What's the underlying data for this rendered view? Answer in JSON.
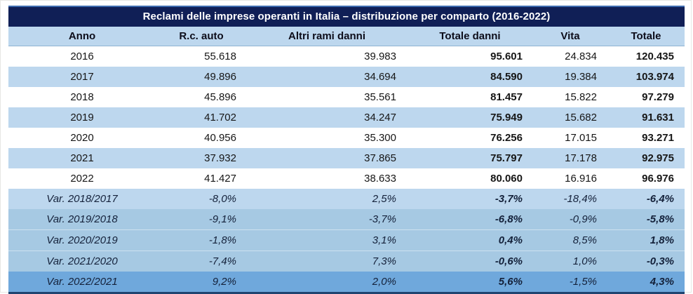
{
  "title": "Reclami delle imprese operanti in Italia – distribuzione per comparto (2016-2022)",
  "columns": [
    "Anno",
    "R.c. auto",
    "Altri rami danni",
    "Totale danni",
    "Vita",
    "Totale"
  ],
  "rows": [
    {
      "label": "2016",
      "values": [
        "55.618",
        "39.983",
        "95.601",
        "24.834",
        "120.435"
      ]
    },
    {
      "label": "2017",
      "values": [
        "49.896",
        "34.694",
        "84.590",
        "19.384",
        "103.974"
      ]
    },
    {
      "label": "2018",
      "values": [
        "45.896",
        "35.561",
        "81.457",
        "15.822",
        "97.279"
      ]
    },
    {
      "label": "2019",
      "values": [
        "41.702",
        "34.247",
        "75.949",
        "15.682",
        "91.631"
      ]
    },
    {
      "label": "2020",
      "values": [
        "40.956",
        "35.300",
        "76.256",
        "17.015",
        "93.271"
      ]
    },
    {
      "label": "2021",
      "values": [
        "37.932",
        "37.865",
        "75.797",
        "17.178",
        "92.975"
      ]
    },
    {
      "label": "2022",
      "values": [
        "41.427",
        "38.633",
        "80.060",
        "16.916",
        "96.976"
      ]
    }
  ],
  "var_rows": [
    {
      "label": "Var. 2018/2017",
      "values": [
        "-8,0%",
        "2,5%",
        "-3,7%",
        "-18,4%",
        "-6,4%"
      ]
    },
    {
      "label": "Var. 2019/2018",
      "values": [
        "-9,1%",
        "-3,7%",
        "-6,8%",
        "-0,9%",
        "-5,8%"
      ]
    },
    {
      "label": "Var. 2020/2019",
      "values": [
        "-1,8%",
        "3,1%",
        "0,4%",
        "8,5%",
        "1,8%"
      ]
    },
    {
      "label": "Var. 2021/2020",
      "values": [
        "-7,4%",
        "7,3%",
        "-0,6%",
        "1,0%",
        "-0,3%"
      ]
    },
    {
      "label": "Var. 2022/2021",
      "values": [
        "9,2%",
        "2,0%",
        "5,6%",
        "-1,5%",
        "4,3%"
      ]
    }
  ],
  "colors": {
    "title_bar": "#101f56",
    "top_border": "#3e6cb0",
    "bottom_border": "#1f4470",
    "header_row": "#bdd7ee",
    "row_alt": "#bdd7ee",
    "var_light": "#bdd7ee",
    "var_mid": "#a6c9e3",
    "var_dark": "#6fa8dc"
  }
}
